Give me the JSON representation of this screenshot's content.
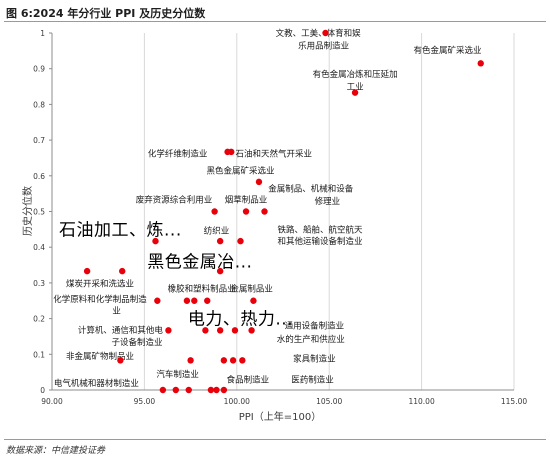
{
  "figure_title": "图 6:2024 年分行业 PPI 及历史分位数",
  "source_note": "数据来源：中信建投证券",
  "colors": {
    "point": "#e8000b",
    "grid": "#d9d9d9",
    "axis": "#8c8c8c",
    "text": "#3a3a3a"
  },
  "chart_data": {
    "type": "scatter",
    "title": "",
    "xlabel": "PPI（上年=100）",
    "ylabel": "历史分位数",
    "xlim": [
      90,
      115
    ],
    "ylim": [
      0,
      1
    ],
    "xticks": [
      "90.00",
      "95.00",
      "100.00",
      "105.00",
      "110.00",
      "115.00"
    ],
    "yticks": [
      "0",
      "0.1",
      "0.2",
      "0.3",
      "0.4",
      "0.5",
      "0.6",
      "0.7",
      "0.8",
      "0.9",
      "1"
    ],
    "grid": true,
    "legend": "none",
    "points": [
      {
        "x": 104.8,
        "y": 1.0
      },
      {
        "x": 113.2,
        "y": 0.915
      },
      {
        "x": 106.4,
        "y": 0.833
      },
      {
        "x": 99.5,
        "y": 0.667
      },
      {
        "x": 99.7,
        "y": 0.667
      },
      {
        "x": 101.2,
        "y": 0.583
      },
      {
        "x": 98.8,
        "y": 0.5
      },
      {
        "x": 100.5,
        "y": 0.5
      },
      {
        "x": 101.5,
        "y": 0.5
      },
      {
        "x": 95.6,
        "y": 0.417
      },
      {
        "x": 99.1,
        "y": 0.417
      },
      {
        "x": 100.2,
        "y": 0.417
      },
      {
        "x": 91.9,
        "y": 0.333
      },
      {
        "x": 93.8,
        "y": 0.333
      },
      {
        "x": 99.1,
        "y": 0.333
      },
      {
        "x": 95.7,
        "y": 0.25
      },
      {
        "x": 97.3,
        "y": 0.25
      },
      {
        "x": 97.7,
        "y": 0.25
      },
      {
        "x": 98.4,
        "y": 0.25
      },
      {
        "x": 100.9,
        "y": 0.25
      },
      {
        "x": 96.3,
        "y": 0.167
      },
      {
        "x": 98.3,
        "y": 0.167
      },
      {
        "x": 99.1,
        "y": 0.167
      },
      {
        "x": 99.9,
        "y": 0.167
      },
      {
        "x": 100.8,
        "y": 0.167
      },
      {
        "x": 93.7,
        "y": 0.083
      },
      {
        "x": 97.5,
        "y": 0.083
      },
      {
        "x": 99.3,
        "y": 0.083
      },
      {
        "x": 99.8,
        "y": 0.083
      },
      {
        "x": 100.3,
        "y": 0.083
      },
      {
        "x": 96.0,
        "y": 0.0
      },
      {
        "x": 96.7,
        "y": 0.0
      },
      {
        "x": 97.4,
        "y": 0.0
      },
      {
        "x": 98.6,
        "y": 0.0
      },
      {
        "x": 98.9,
        "y": 0.0
      },
      {
        "x": 99.3,
        "y": 0.0
      }
    ],
    "annotations": [
      {
        "text": "文教、工美、体育和娱",
        "x": 104.4,
        "y": 1.0,
        "anchor": "middle",
        "big": false
      },
      {
        "text": "乐用品制造业",
        "x": 104.7,
        "y": 0.965,
        "anchor": "middle",
        "big": false
      },
      {
        "text": "有色金属矿采选业",
        "x": 111.4,
        "y": 0.952,
        "anchor": "middle",
        "big": false
      },
      {
        "text": "有色金属冶炼和压延加",
        "x": 106.4,
        "y": 0.885,
        "anchor": "middle",
        "big": false
      },
      {
        "text": "工业",
        "x": 106.4,
        "y": 0.85,
        "anchor": "middle",
        "big": false
      },
      {
        "text": "化学纤维制造业",
        "x": 96.8,
        "y": 0.662,
        "anchor": "middle",
        "big": false
      },
      {
        "text": "石油和天然气开采业",
        "x": 102.0,
        "y": 0.662,
        "anchor": "middle",
        "big": false
      },
      {
        "text": "黑色金属矿采选业",
        "x": 100.2,
        "y": 0.615,
        "anchor": "middle",
        "big": false
      },
      {
        "text": "金属制品、机械和设备",
        "x": 104.0,
        "y": 0.565,
        "anchor": "middle",
        "big": false
      },
      {
        "text": "修理业",
        "x": 104.9,
        "y": 0.53,
        "anchor": "middle",
        "big": false
      },
      {
        "text": "废弃资源综合利用业",
        "x": 96.6,
        "y": 0.533,
        "anchor": "middle",
        "big": false
      },
      {
        "text": "烟草制品业",
        "x": 100.5,
        "y": 0.533,
        "anchor": "middle",
        "big": false
      },
      {
        "text": "纺织业",
        "x": 98.9,
        "y": 0.447,
        "anchor": "middle",
        "big": false
      },
      {
        "text": "铁路、船舶、航空航天",
        "x": 104.5,
        "y": 0.45,
        "anchor": "middle",
        "big": false
      },
      {
        "text": "和其他运输设备制造业",
        "x": 104.5,
        "y": 0.418,
        "anchor": "middle",
        "big": false
      },
      {
        "text": "石油加工、炼...",
        "x": 93.7,
        "y": 0.45,
        "anchor": "middle",
        "big": true
      },
      {
        "text": "黑色金属冶...",
        "x": 98.0,
        "y": 0.36,
        "anchor": "middle",
        "big": true
      },
      {
        "text": "煤炭开采和洗选业",
        "x": 92.6,
        "y": 0.298,
        "anchor": "middle",
        "big": false
      },
      {
        "text": "橡胶和塑料制品业",
        "x": 98.1,
        "y": 0.285,
        "anchor": "middle",
        "big": false
      },
      {
        "text": "金属制品业",
        "x": 100.8,
        "y": 0.285,
        "anchor": "middle",
        "big": false
      },
      {
        "text": "化学原料和化学制品制造",
        "x": 92.6,
        "y": 0.255,
        "anchor": "middle",
        "big": false
      },
      {
        "text": "业",
        "x": 93.5,
        "y": 0.222,
        "anchor": "middle",
        "big": false
      },
      {
        "text": "电力、热力...",
        "x": 100.2,
        "y": 0.2,
        "anchor": "middle",
        "big": true
      },
      {
        "text": "计算机、通信和其他电",
        "x": 93.7,
        "y": 0.168,
        "anchor": "middle",
        "big": false
      },
      {
        "text": "子设备制造业",
        "x": 94.6,
        "y": 0.135,
        "anchor": "middle",
        "big": false
      },
      {
        "text": "通用设备制造业",
        "x": 104.2,
        "y": 0.18,
        "anchor": "middle",
        "big": false
      },
      {
        "text": "水的生产和供应业",
        "x": 104.0,
        "y": 0.143,
        "anchor": "middle",
        "big": false
      },
      {
        "text": "非金属矿物制品业",
        "x": 92.6,
        "y": 0.095,
        "anchor": "middle",
        "big": false
      },
      {
        "text": "家具制造业",
        "x": 104.2,
        "y": 0.088,
        "anchor": "middle",
        "big": false
      },
      {
        "text": "汽车制造业",
        "x": 96.8,
        "y": 0.045,
        "anchor": "middle",
        "big": false
      },
      {
        "text": "电气机械和器材制造业",
        "x": 92.4,
        "y": 0.02,
        "anchor": "middle",
        "big": false
      },
      {
        "text": "食品制造业",
        "x": 100.6,
        "y": 0.03,
        "anchor": "middle",
        "big": false
      },
      {
        "text": "医药制造业",
        "x": 104.1,
        "y": 0.03,
        "anchor": "middle",
        "big": false
      }
    ]
  }
}
